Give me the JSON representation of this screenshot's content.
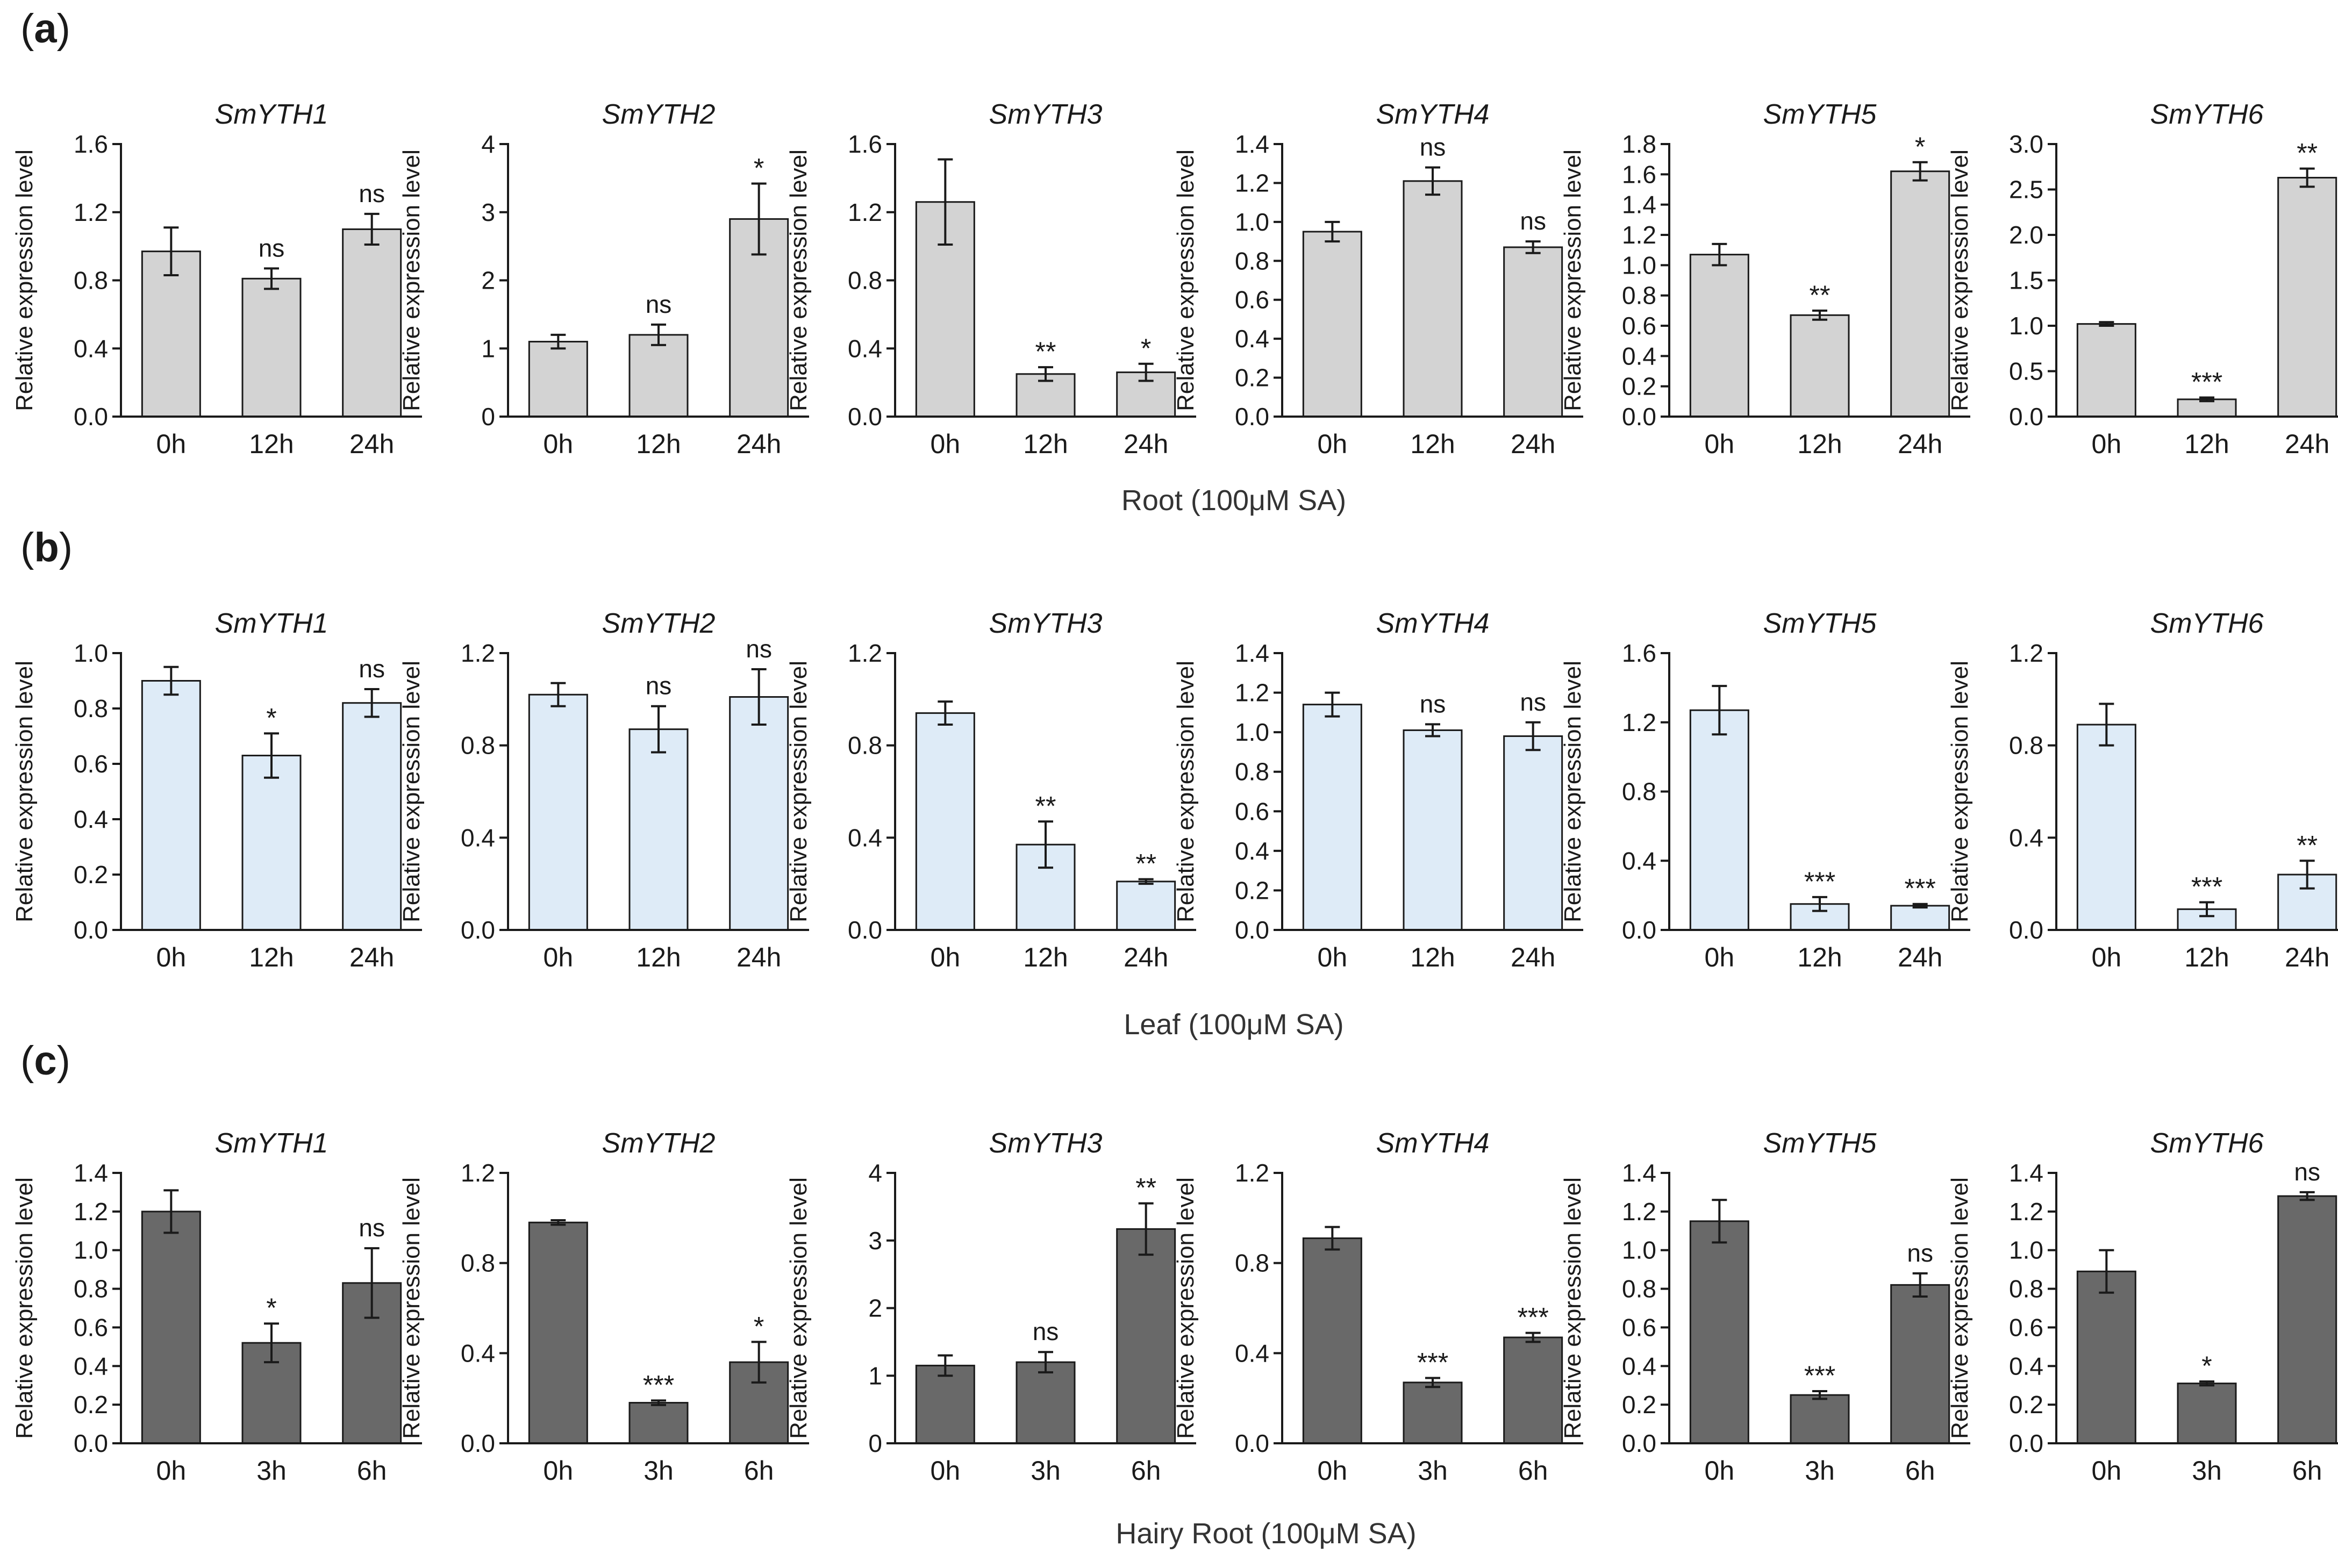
{
  "figure": {
    "panel_labels": [
      "a",
      "b",
      "c"
    ],
    "row_captions": [
      "Root (100μM SA)",
      "Leaf (100μM SA)",
      "Hairy Root (100μM SA)"
    ],
    "ylabel": "Relative expression level",
    "colors": {
      "root": "#d3d3d3",
      "leaf": "#deebf7",
      "hairy_root": "#696969",
      "axis": "#1a1a1a",
      "errorbar": "#1a1a1a"
    }
  },
  "chart_data": [
    {
      "row": 0,
      "col": 0,
      "type": "bar",
      "title": "SmYTH1",
      "ylabel": "Relative expression level",
      "categories": [
        "0h",
        "12h",
        "24h"
      ],
      "values": [
        0.97,
        0.81,
        1.1
      ],
      "errors": [
        0.14,
        0.06,
        0.09
      ],
      "significance": [
        "",
        "ns",
        "ns"
      ],
      "ylim": [
        0,
        1.6
      ],
      "yticks": [
        "0.0",
        "0.4",
        "0.8",
        "1.2",
        "1.6"
      ]
    },
    {
      "row": 0,
      "col": 1,
      "type": "bar",
      "title": "SmYTH2",
      "ylabel": "Relative expression level",
      "categories": [
        "0h",
        "12h",
        "24h"
      ],
      "values": [
        1.1,
        1.2,
        2.9
      ],
      "errors": [
        0.1,
        0.15,
        0.52
      ],
      "significance": [
        "",
        "ns",
        "*"
      ],
      "ylim": [
        0,
        4
      ],
      "yticks": [
        "0",
        "1",
        "2",
        "3",
        "4"
      ]
    },
    {
      "row": 0,
      "col": 2,
      "type": "bar",
      "title": "SmYTH3",
      "ylabel": "Relative expression level",
      "categories": [
        "0h",
        "12h",
        "24h"
      ],
      "values": [
        1.26,
        0.25,
        0.26
      ],
      "errors": [
        0.25,
        0.04,
        0.05
      ],
      "significance": [
        "",
        "**",
        "*"
      ],
      "ylim": [
        0,
        1.6
      ],
      "yticks": [
        "0.0",
        "0.4",
        "0.8",
        "1.2",
        "1.6"
      ]
    },
    {
      "row": 0,
      "col": 3,
      "type": "bar",
      "title": "SmYTH4",
      "ylabel": "Relative expression level",
      "categories": [
        "0h",
        "12h",
        "24h"
      ],
      "values": [
        0.95,
        1.21,
        0.87
      ],
      "errors": [
        0.05,
        0.07,
        0.03
      ],
      "significance": [
        "",
        "ns",
        "ns"
      ],
      "ylim": [
        0,
        1.4
      ],
      "yticks": [
        "0.0",
        "0.2",
        "0.4",
        "0.6",
        "0.8",
        "1.0",
        "1.2",
        "1.4"
      ]
    },
    {
      "row": 0,
      "col": 4,
      "type": "bar",
      "title": "SmYTH5",
      "ylabel": "Relative expression level",
      "categories": [
        "0h",
        "12h",
        "24h"
      ],
      "values": [
        1.07,
        0.67,
        1.62
      ],
      "errors": [
        0.07,
        0.03,
        0.06
      ],
      "significance": [
        "",
        "**",
        "*"
      ],
      "ylim": [
        0,
        1.8
      ],
      "yticks": [
        "0.0",
        "0.2",
        "0.4",
        "0.6",
        "0.8",
        "1.0",
        "1.2",
        "1.4",
        "1.6",
        "1.8"
      ]
    },
    {
      "row": 0,
      "col": 5,
      "type": "bar",
      "title": "SmYTH6",
      "ylabel": "Relative expression level",
      "categories": [
        "0h",
        "12h",
        "24h"
      ],
      "values": [
        1.02,
        0.19,
        2.63
      ],
      "errors": [
        0.02,
        0.02,
        0.1
      ],
      "significance": [
        "",
        "***",
        "**"
      ],
      "ylim": [
        0,
        3.0
      ],
      "yticks": [
        "0.0",
        "0.5",
        "1.0",
        "1.5",
        "2.0",
        "2.5",
        "3.0"
      ]
    },
    {
      "row": 1,
      "col": 0,
      "type": "bar",
      "title": "SmYTH1",
      "ylabel": "Relative expression level",
      "categories": [
        "0h",
        "12h",
        "24h"
      ],
      "values": [
        0.9,
        0.63,
        0.82
      ],
      "errors": [
        0.05,
        0.08,
        0.05
      ],
      "significance": [
        "",
        "*",
        "ns"
      ],
      "ylim": [
        0,
        1.0
      ],
      "yticks": [
        "0.0",
        "0.2",
        "0.4",
        "0.6",
        "0.8",
        "1.0"
      ]
    },
    {
      "row": 1,
      "col": 1,
      "type": "bar",
      "title": "SmYTH2",
      "ylabel": "Relative expression level",
      "categories": [
        "0h",
        "12h",
        "24h"
      ],
      "values": [
        1.02,
        0.87,
        1.01
      ],
      "errors": [
        0.05,
        0.1,
        0.12
      ],
      "significance": [
        "",
        "ns",
        "ns"
      ],
      "ylim": [
        0,
        1.2
      ],
      "yticks": [
        "0.0",
        "0.4",
        "0.8",
        "1.2"
      ]
    },
    {
      "row": 1,
      "col": 2,
      "type": "bar",
      "title": "SmYTH3",
      "ylabel": "Relative expression level",
      "categories": [
        "0h",
        "12h",
        "24h"
      ],
      "values": [
        0.94,
        0.37,
        0.21
      ],
      "errors": [
        0.05,
        0.1,
        0.01
      ],
      "significance": [
        "",
        "**",
        "**"
      ],
      "ylim": [
        0,
        1.2
      ],
      "yticks": [
        "0.0",
        "0.4",
        "0.8",
        "1.2"
      ]
    },
    {
      "row": 1,
      "col": 3,
      "type": "bar",
      "title": "SmYTH4",
      "ylabel": "Relative expression level",
      "categories": [
        "0h",
        "12h",
        "24h"
      ],
      "values": [
        1.14,
        1.01,
        0.98
      ],
      "errors": [
        0.06,
        0.03,
        0.07
      ],
      "significance": [
        "",
        "ns",
        "ns"
      ],
      "ylim": [
        0,
        1.4
      ],
      "yticks": [
        "0.0",
        "0.2",
        "0.4",
        "0.6",
        "0.8",
        "1.0",
        "1.2",
        "1.4"
      ]
    },
    {
      "row": 1,
      "col": 4,
      "type": "bar",
      "title": "SmYTH5",
      "ylabel": "Relative expression level",
      "categories": [
        "0h",
        "12h",
        "24h"
      ],
      "values": [
        1.27,
        0.15,
        0.14
      ],
      "errors": [
        0.14,
        0.04,
        0.01
      ],
      "significance": [
        "",
        "***",
        "***"
      ],
      "ylim": [
        0,
        1.6
      ],
      "yticks": [
        "0.0",
        "0.4",
        "0.8",
        "1.2",
        "1.6"
      ]
    },
    {
      "row": 1,
      "col": 5,
      "type": "bar",
      "title": "SmYTH6",
      "ylabel": "Relative expression level",
      "categories": [
        "0h",
        "12h",
        "24h"
      ],
      "values": [
        0.89,
        0.09,
        0.24
      ],
      "errors": [
        0.09,
        0.03,
        0.06
      ],
      "significance": [
        "",
        "***",
        "**"
      ],
      "ylim": [
        0,
        1.2
      ],
      "yticks": [
        "0.0",
        "0.4",
        "0.8",
        "1.2"
      ]
    },
    {
      "row": 2,
      "col": 0,
      "type": "bar",
      "title": "SmYTH1",
      "ylabel": "Relative expression level",
      "categories": [
        "0h",
        "3h",
        "6h"
      ],
      "values": [
        1.2,
        0.52,
        0.83
      ],
      "errors": [
        0.11,
        0.1,
        0.18
      ],
      "significance": [
        "",
        "*",
        "ns"
      ],
      "ylim": [
        0,
        1.4
      ],
      "yticks": [
        "0.0",
        "0.2",
        "0.4",
        "0.6",
        "0.8",
        "1.0",
        "1.2",
        "1.4"
      ]
    },
    {
      "row": 2,
      "col": 1,
      "type": "bar",
      "title": "SmYTH2",
      "ylabel": "Relative expression level",
      "categories": [
        "0h",
        "3h",
        "6h"
      ],
      "values": [
        0.98,
        0.18,
        0.36
      ],
      "errors": [
        0.01,
        0.01,
        0.09
      ],
      "significance": [
        "",
        "***",
        "*"
      ],
      "ylim": [
        0,
        1.2
      ],
      "yticks": [
        "0.0",
        "0.4",
        "0.8",
        "1.2"
      ]
    },
    {
      "row": 2,
      "col": 2,
      "type": "bar",
      "title": "SmYTH3",
      "ylabel": "Relative expression level",
      "categories": [
        "0h",
        "3h",
        "6h"
      ],
      "values": [
        1.15,
        1.2,
        3.17
      ],
      "errors": [
        0.15,
        0.15,
        0.38
      ],
      "significance": [
        "",
        "ns",
        "**"
      ],
      "ylim": [
        0,
        4
      ],
      "yticks": [
        "0",
        "1",
        "2",
        "3",
        "4"
      ]
    },
    {
      "row": 2,
      "col": 3,
      "type": "bar",
      "title": "SmYTH4",
      "ylabel": "Relative expression level",
      "categories": [
        "0h",
        "3h",
        "6h"
      ],
      "values": [
        0.91,
        0.27,
        0.47
      ],
      "errors": [
        0.05,
        0.02,
        0.02
      ],
      "significance": [
        "",
        "***",
        "***"
      ],
      "ylim": [
        0,
        1.2
      ],
      "yticks": [
        "0.0",
        "0.4",
        "0.8",
        "1.2"
      ]
    },
    {
      "row": 2,
      "col": 4,
      "type": "bar",
      "title": "SmYTH5",
      "ylabel": "Relative expression level",
      "categories": [
        "0h",
        "3h",
        "6h"
      ],
      "values": [
        1.15,
        0.25,
        0.82
      ],
      "errors": [
        0.11,
        0.02,
        0.06
      ],
      "significance": [
        "",
        "***",
        "ns"
      ],
      "ylim": [
        0,
        1.4
      ],
      "yticks": [
        "0.0",
        "0.2",
        "0.4",
        "0.6",
        "0.8",
        "1.0",
        "1.2",
        "1.4"
      ]
    },
    {
      "row": 2,
      "col": 5,
      "type": "bar",
      "title": "SmYTH6",
      "ylabel": "Relative expression level",
      "categories": [
        "0h",
        "3h",
        "6h"
      ],
      "values": [
        0.89,
        0.31,
        1.28
      ],
      "errors": [
        0.11,
        0.01,
        0.02
      ],
      "significance": [
        "",
        "*",
        "ns"
      ],
      "ylim": [
        0,
        1.4
      ],
      "yticks": [
        "0.0",
        "0.2",
        "0.4",
        "0.6",
        "0.8",
        "1.0",
        "1.2",
        "1.4"
      ]
    }
  ]
}
